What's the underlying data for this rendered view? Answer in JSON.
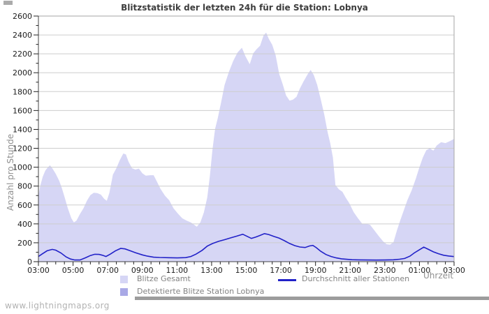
{
  "page": {
    "watermark": "www.lightningmaps.org"
  },
  "chart_data": {
    "type": "area",
    "title": "Blitzstatistik der letzten 24h für die Station: Lobnya",
    "xlabel": "Uhrzeit",
    "ylabel": "Anzahl pro Stunde",
    "grid": "horizontal",
    "legend_position": "bottom",
    "ylim": [
      0,
      2600
    ],
    "y_major_step": 200,
    "y_minor_step": 100,
    "x_range_hours": [
      3,
      27
    ],
    "x_minor_step_hours": 0.5,
    "x_major_step_hours": 2,
    "x_tick_labels": [
      "03:00",
      "05:00",
      "07:00",
      "09:00",
      "11:00",
      "13:00",
      "15:00",
      "17:00",
      "19:00",
      "21:00",
      "23:00",
      "01:00",
      "03:00"
    ],
    "colors": {
      "total_area": "#d6d6f5",
      "detected_area": "#a9a9e6",
      "average_line": "#2121c8",
      "grid_line": "#cdcdcd",
      "plot_border": "#a6a6a6",
      "axis_line": "#444444",
      "tick": "#222222",
      "tick_label": "#1c1c1c"
    },
    "series": [
      {
        "name": "Blitze Gesamt",
        "type": "area",
        "color": "#d6d6f5",
        "points": [
          [
            3.0,
            700
          ],
          [
            3.1,
            800
          ],
          [
            3.25,
            900
          ],
          [
            3.4,
            965
          ],
          [
            3.55,
            1000
          ],
          [
            3.67,
            1020
          ],
          [
            3.8,
            990
          ],
          [
            4.0,
            930
          ],
          [
            4.2,
            855
          ],
          [
            4.35,
            780
          ],
          [
            4.5,
            690
          ],
          [
            4.7,
            565
          ],
          [
            4.9,
            460
          ],
          [
            5.05,
            415
          ],
          [
            5.2,
            435
          ],
          [
            5.4,
            505
          ],
          [
            5.6,
            565
          ],
          [
            5.8,
            645
          ],
          [
            6.0,
            705
          ],
          [
            6.2,
            730
          ],
          [
            6.4,
            725
          ],
          [
            6.6,
            710
          ],
          [
            6.8,
            665
          ],
          [
            6.95,
            645
          ],
          [
            7.1,
            730
          ],
          [
            7.3,
            920
          ],
          [
            7.5,
            990
          ],
          [
            7.7,
            1075
          ],
          [
            7.9,
            1145
          ],
          [
            8.05,
            1135
          ],
          [
            8.2,
            1060
          ],
          [
            8.4,
            990
          ],
          [
            8.6,
            975
          ],
          [
            8.8,
            985
          ],
          [
            9.0,
            935
          ],
          [
            9.2,
            910
          ],
          [
            9.45,
            915
          ],
          [
            9.65,
            915
          ],
          [
            9.85,
            845
          ],
          [
            10.05,
            770
          ],
          [
            10.3,
            700
          ],
          [
            10.55,
            650
          ],
          [
            10.8,
            565
          ],
          [
            11.05,
            510
          ],
          [
            11.3,
            460
          ],
          [
            11.55,
            435
          ],
          [
            11.8,
            415
          ],
          [
            12.0,
            390
          ],
          [
            12.15,
            370
          ],
          [
            12.35,
            415
          ],
          [
            12.55,
            520
          ],
          [
            12.75,
            680
          ],
          [
            12.9,
            905
          ],
          [
            13.05,
            1190
          ],
          [
            13.2,
            1405
          ],
          [
            13.35,
            1515
          ],
          [
            13.55,
            1690
          ],
          [
            13.75,
            1870
          ],
          [
            14.0,
            2010
          ],
          [
            14.25,
            2125
          ],
          [
            14.5,
            2215
          ],
          [
            14.75,
            2265
          ],
          [
            14.95,
            2175
          ],
          [
            15.2,
            2090
          ],
          [
            15.4,
            2205
          ],
          [
            15.6,
            2250
          ],
          [
            15.8,
            2285
          ],
          [
            16.0,
            2395
          ],
          [
            16.15,
            2425
          ],
          [
            16.3,
            2360
          ],
          [
            16.5,
            2295
          ],
          [
            16.7,
            2185
          ],
          [
            16.9,
            1990
          ],
          [
            17.1,
            1880
          ],
          [
            17.3,
            1760
          ],
          [
            17.5,
            1705
          ],
          [
            17.7,
            1715
          ],
          [
            17.9,
            1745
          ],
          [
            18.1,
            1835
          ],
          [
            18.3,
            1905
          ],
          [
            18.55,
            1985
          ],
          [
            18.72,
            2030
          ],
          [
            18.9,
            1975
          ],
          [
            19.1,
            1870
          ],
          [
            19.3,
            1720
          ],
          [
            19.5,
            1560
          ],
          [
            19.7,
            1370
          ],
          [
            19.85,
            1255
          ],
          [
            20.0,
            1105
          ],
          [
            20.15,
            810
          ],
          [
            20.35,
            765
          ],
          [
            20.55,
            740
          ],
          [
            20.75,
            675
          ],
          [
            20.95,
            620
          ],
          [
            21.2,
            525
          ],
          [
            21.45,
            460
          ],
          [
            21.7,
            400
          ],
          [
            21.95,
            400
          ],
          [
            22.15,
            390
          ],
          [
            22.4,
            330
          ],
          [
            22.65,
            270
          ],
          [
            22.9,
            215
          ],
          [
            23.1,
            185
          ],
          [
            23.3,
            180
          ],
          [
            23.5,
            205
          ],
          [
            23.7,
            330
          ],
          [
            23.9,
            440
          ],
          [
            24.1,
            545
          ],
          [
            24.3,
            650
          ],
          [
            24.55,
            755
          ],
          [
            24.8,
            885
          ],
          [
            25.0,
            1000
          ],
          [
            25.2,
            1105
          ],
          [
            25.4,
            1180
          ],
          [
            25.6,
            1200
          ],
          [
            25.8,
            1175
          ],
          [
            26.0,
            1230
          ],
          [
            26.25,
            1265
          ],
          [
            26.5,
            1255
          ],
          [
            26.75,
            1275
          ],
          [
            27.0,
            1300
          ]
        ]
      },
      {
        "name": "Detektierte Blitze Station Lobnya",
        "type": "area",
        "color": "#a9a9e6",
        "points": [
          [
            3.0,
            0
          ],
          [
            27.0,
            0
          ]
        ]
      },
      {
        "name": "Durchschnitt aller Stationen",
        "type": "line",
        "color": "#2121c8",
        "points": [
          [
            3.0,
            55
          ],
          [
            3.2,
            80
          ],
          [
            3.5,
            115
          ],
          [
            3.8,
            130
          ],
          [
            4.0,
            122
          ],
          [
            4.3,
            92
          ],
          [
            4.6,
            50
          ],
          [
            4.85,
            28
          ],
          [
            5.1,
            18
          ],
          [
            5.4,
            18
          ],
          [
            5.7,
            40
          ],
          [
            6.0,
            65
          ],
          [
            6.25,
            78
          ],
          [
            6.5,
            77
          ],
          [
            6.7,
            68
          ],
          [
            6.9,
            55
          ],
          [
            7.15,
            80
          ],
          [
            7.45,
            115
          ],
          [
            7.75,
            140
          ],
          [
            8.0,
            135
          ],
          [
            8.3,
            115
          ],
          [
            8.6,
            95
          ],
          [
            9.0,
            72
          ],
          [
            9.3,
            58
          ],
          [
            9.65,
            47
          ],
          [
            10.0,
            44
          ],
          [
            10.5,
            42
          ],
          [
            11.0,
            40
          ],
          [
            11.5,
            43
          ],
          [
            11.8,
            55
          ],
          [
            12.1,
            80
          ],
          [
            12.45,
            120
          ],
          [
            12.75,
            165
          ],
          [
            13.05,
            192
          ],
          [
            13.4,
            215
          ],
          [
            13.75,
            233
          ],
          [
            14.1,
            252
          ],
          [
            14.45,
            270
          ],
          [
            14.8,
            290
          ],
          [
            15.05,
            268
          ],
          [
            15.3,
            246
          ],
          [
            15.55,
            260
          ],
          [
            15.8,
            278
          ],
          [
            16.05,
            297
          ],
          [
            16.3,
            287
          ],
          [
            16.6,
            267
          ],
          [
            16.9,
            249
          ],
          [
            17.2,
            222
          ],
          [
            17.5,
            193
          ],
          [
            17.8,
            170
          ],
          [
            18.1,
            155
          ],
          [
            18.4,
            150
          ],
          [
            18.65,
            166
          ],
          [
            18.85,
            172
          ],
          [
            19.05,
            148
          ],
          [
            19.3,
            110
          ],
          [
            19.6,
            76
          ],
          [
            19.9,
            55
          ],
          [
            20.2,
            40
          ],
          [
            20.5,
            30
          ],
          [
            20.8,
            25
          ],
          [
            21.1,
            21
          ],
          [
            21.5,
            19
          ],
          [
            22.0,
            18
          ],
          [
            22.5,
            17
          ],
          [
            23.0,
            18
          ],
          [
            23.5,
            20
          ],
          [
            23.85,
            26
          ],
          [
            24.15,
            34
          ],
          [
            24.45,
            58
          ],
          [
            24.7,
            92
          ],
          [
            25.0,
            126
          ],
          [
            25.25,
            154
          ],
          [
            25.5,
            132
          ],
          [
            25.8,
            104
          ],
          [
            26.1,
            84
          ],
          [
            26.4,
            68
          ],
          [
            26.7,
            60
          ],
          [
            27.0,
            54
          ]
        ]
      }
    ]
  }
}
